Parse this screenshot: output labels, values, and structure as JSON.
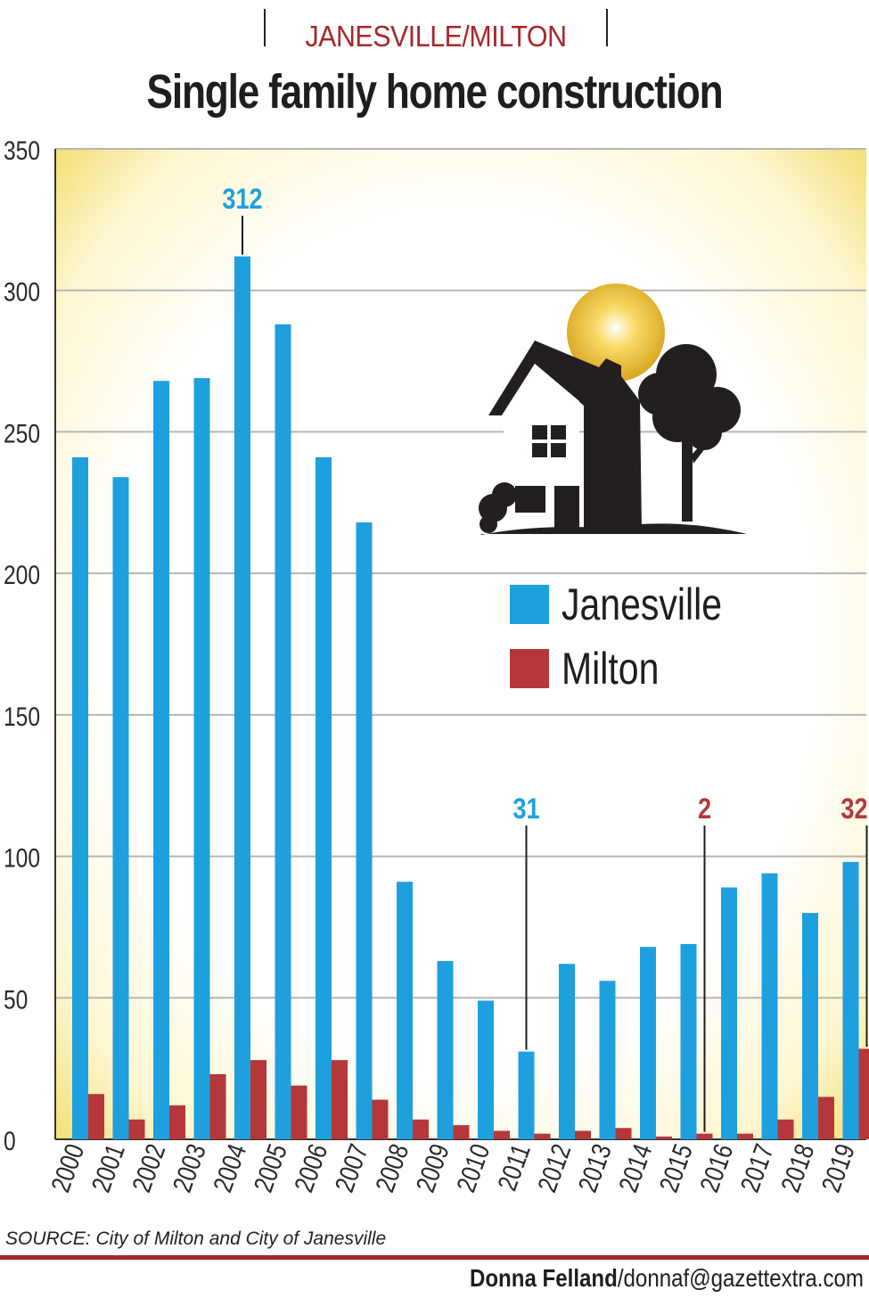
{
  "header": {
    "kicker": "JANESVILLE/MILTON",
    "title": "Single family home construction"
  },
  "colors": {
    "janesville": "#1ea0de",
    "milton": "#b5373a",
    "accent": "#a8262b",
    "text": "#1e1e1e"
  },
  "icons": {
    "illustration": "house-tree-sun-icon"
  },
  "chart_data": {
    "type": "bar",
    "categories": [
      "2000",
      "2001",
      "2002",
      "2003",
      "2004",
      "2005",
      "2006",
      "2007",
      "2008",
      "2009",
      "2010",
      "2011",
      "2012",
      "2013",
      "2014",
      "2015",
      "2016",
      "2017",
      "2018",
      "2019"
    ],
    "series": [
      {
        "name": "Janesville",
        "color": "#1ea0de",
        "values": [
          241,
          234,
          268,
          269,
          312,
          288,
          241,
          218,
          91,
          63,
          49,
          31,
          62,
          56,
          68,
          69,
          89,
          94,
          80,
          98
        ]
      },
      {
        "name": "Milton",
        "color": "#b5373a",
        "values": [
          16,
          7,
          12,
          23,
          28,
          19,
          28,
          14,
          7,
          5,
          3,
          2,
          3,
          4,
          1,
          2,
          2,
          7,
          15,
          32
        ]
      }
    ],
    "ylim": [
      0,
      350
    ],
    "yticks": [
      0,
      50,
      100,
      150,
      200,
      250,
      300,
      350
    ],
    "grid": true,
    "legend_position": "right",
    "annotations": [
      {
        "text": "312",
        "category": "2004",
        "series": "Janesville"
      },
      {
        "text": "31",
        "category": "2011",
        "series": "Janesville"
      },
      {
        "text": "2",
        "category": "2015",
        "series": "Milton"
      },
      {
        "text": "32",
        "category": "2019",
        "series": "Milton"
      }
    ]
  },
  "legend": {
    "items": [
      {
        "label": "Janesville",
        "color": "#1ea0de"
      },
      {
        "label": "Milton",
        "color": "#b5373a"
      }
    ]
  },
  "footer": {
    "source": "SOURCE: City of Milton and City of Janesville",
    "credit_name": "Donna Felland",
    "credit_email": "/donnaf@gazettextra.com"
  }
}
